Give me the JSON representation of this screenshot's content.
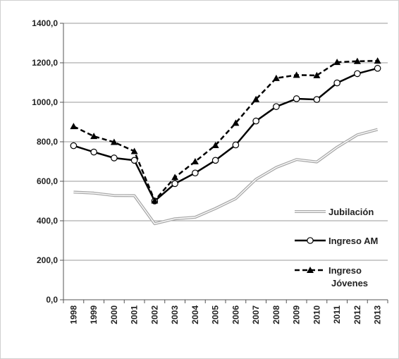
{
  "chart_data": {
    "type": "line",
    "x": [
      "1998",
      "1999",
      "2000",
      "2001",
      "2002",
      "2003",
      "2004",
      "2005",
      "2006",
      "2007",
      "2008",
      "2009",
      "2010",
      "2011",
      "2012",
      "2013"
    ],
    "ylim": [
      0,
      1400
    ],
    "yticks": [
      "0,0",
      "200,0",
      "400,0",
      "600,0",
      "800,0",
      "1000,0",
      "1200,0",
      "1400,0"
    ],
    "grid": "horizontal",
    "legend_position": "right",
    "series": [
      {
        "key": "jubilacion",
        "name": "Jubilación",
        "color": "#a8a8a8",
        "style": "double-line",
        "marker": "none",
        "values": [
          545,
          540,
          528,
          527,
          385,
          410,
          418,
          462,
          512,
          610,
          670,
          710,
          698,
          772,
          835,
          862
        ]
      },
      {
        "key": "ingreso_am",
        "name": "Ingreso AM",
        "color": "#000000",
        "style": "solid",
        "marker": "circle",
        "values": [
          780,
          748,
          718,
          706,
          500,
          588,
          642,
          706,
          784,
          905,
          978,
          1018,
          1014,
          1098,
          1145,
          1172
        ]
      },
      {
        "key": "ingreso_jovenes",
        "name_lines": [
          "Ingreso",
          "Jóvenes"
        ],
        "color": "#000000",
        "style": "dashed",
        "marker": "triangle",
        "values": [
          878,
          828,
          798,
          752,
          502,
          620,
          700,
          782,
          895,
          1015,
          1122,
          1138,
          1136,
          1203,
          1208,
          1210
        ]
      }
    ]
  }
}
